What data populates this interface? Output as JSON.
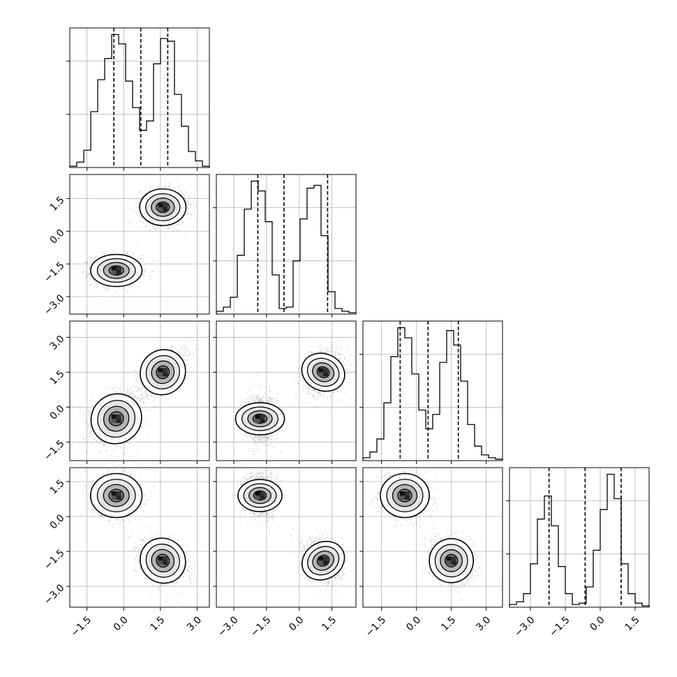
{
  "chart_data": {
    "type": "corner",
    "title": "",
    "dimensions": 4,
    "grid": true,
    "tick_label_rotation_deg": 45,
    "colors": {
      "line": "#000000",
      "grid": "#b0b0b0",
      "points": "#7f7f7f"
    },
    "quantile_lines": "dashed",
    "ranges": [
      [
        -2.2,
        3.5
      ],
      [
        -3.8,
        2.6
      ],
      [
        -2.3,
        3.7
      ],
      [
        -3.9,
        2.1
      ]
    ],
    "ticks": [
      {
        "values": [
          -1.5,
          0.0,
          1.5,
          3.0
        ],
        "labels": [
          "−1.5",
          "0.0",
          "1.5",
          "3.0"
        ]
      },
      {
        "values": [
          -3.0,
          -1.5,
          0.0,
          1.5
        ],
        "labels": [
          "−3.0",
          "−1.5",
          "0.0",
          "1.5"
        ]
      },
      {
        "values": [
          -1.5,
          0.0,
          1.5,
          3.0
        ],
        "labels": [
          "−1.5",
          "0.0",
          "1.5",
          "3.0"
        ]
      },
      {
        "values": [
          -3.0,
          -1.5,
          0.0,
          1.5
        ],
        "labels": [
          "−3.0",
          "−1.5",
          "0.0",
          "1.5"
        ]
      }
    ],
    "marginal_quantiles": [
      [
        -0.4,
        0.7,
        1.8
      ],
      [
        -1.9,
        -0.7,
        1.3
      ],
      [
        -0.7,
        0.5,
        1.8
      ],
      [
        -2.2,
        -0.65,
        0.9
      ]
    ],
    "histograms": [
      {
        "bins": [
          -2.2,
          -1.915,
          -1.63,
          -1.345,
          -1.06,
          -0.775,
          -0.49,
          -0.205,
          0.08,
          0.365,
          0.65,
          0.935,
          1.22,
          1.505,
          1.79,
          2.075,
          2.36,
          2.645,
          2.93,
          3.215,
          3.5
        ],
        "counts": [
          0.01,
          0.04,
          0.13,
          0.42,
          0.66,
          0.82,
          1.0,
          0.93,
          0.65,
          0.45,
          0.28,
          0.35,
          0.78,
          0.97,
          0.95,
          0.55,
          0.31,
          0.12,
          0.05,
          0.01
        ]
      },
      {
        "bins": [
          -3.8,
          -3.48,
          -3.16,
          -2.84,
          -2.52,
          -2.2,
          -1.88,
          -1.56,
          -1.24,
          -0.92,
          -0.6,
          -0.28,
          0.04,
          0.36,
          0.68,
          1.0,
          1.32,
          1.64,
          1.96,
          2.28,
          2.6
        ],
        "counts": [
          0.02,
          0.05,
          0.12,
          0.42,
          0.75,
          0.95,
          0.88,
          0.66,
          0.28,
          0.04,
          0.05,
          0.38,
          0.68,
          0.9,
          0.92,
          0.56,
          0.16,
          0.04,
          0.02,
          0.01
        ]
      },
      {
        "bins": [
          -2.3,
          -2.0,
          -1.7,
          -1.4,
          -1.1,
          -0.8,
          -0.5,
          -0.2,
          0.1,
          0.4,
          0.7,
          1.0,
          1.3,
          1.6,
          1.9,
          2.2,
          2.5,
          2.8,
          3.1,
          3.4,
          3.7
        ],
        "counts": [
          0.02,
          0.06,
          0.15,
          0.4,
          0.72,
          0.92,
          0.85,
          0.6,
          0.35,
          0.22,
          0.32,
          0.68,
          0.9,
          0.8,
          0.55,
          0.25,
          0.1,
          0.04,
          0.02,
          0.01
        ]
      },
      {
        "bins": [
          -3.9,
          -3.6,
          -3.3,
          -3.0,
          -2.7,
          -2.4,
          -2.1,
          -1.8,
          -1.5,
          -1.2,
          -0.9,
          -0.6,
          -0.3,
          0.0,
          0.3,
          0.6,
          0.9,
          1.2,
          1.5,
          1.8,
          2.1
        ],
        "counts": [
          0.02,
          0.04,
          0.1,
          0.32,
          0.65,
          0.82,
          0.6,
          0.3,
          0.1,
          0.02,
          0.03,
          0.15,
          0.42,
          0.72,
          0.98,
          0.8,
          0.32,
          0.1,
          0.03,
          0.01
        ]
      }
    ],
    "mode_means": [
      [
        -0.3,
        -1.8,
        -0.5,
        0.9
      ],
      [
        1.6,
        1.1,
        1.5,
        -1.9
      ]
    ],
    "mode_sigmas": [
      [
        0.5,
        0.35,
        0.5,
        0.45
      ],
      [
        0.45,
        0.4,
        0.45,
        0.45
      ]
    ],
    "pair_correlations": {
      "1,0": [
        0.0,
        0.0
      ],
      "2,0": [
        0.2,
        0.6
      ],
      "2,1": [
        0.0,
        0.2
      ],
      "3,0": [
        0.0,
        -0.3
      ],
      "3,1": [
        0.0,
        -0.3
      ],
      "3,2": [
        0.0,
        -0.2
      ]
    }
  }
}
